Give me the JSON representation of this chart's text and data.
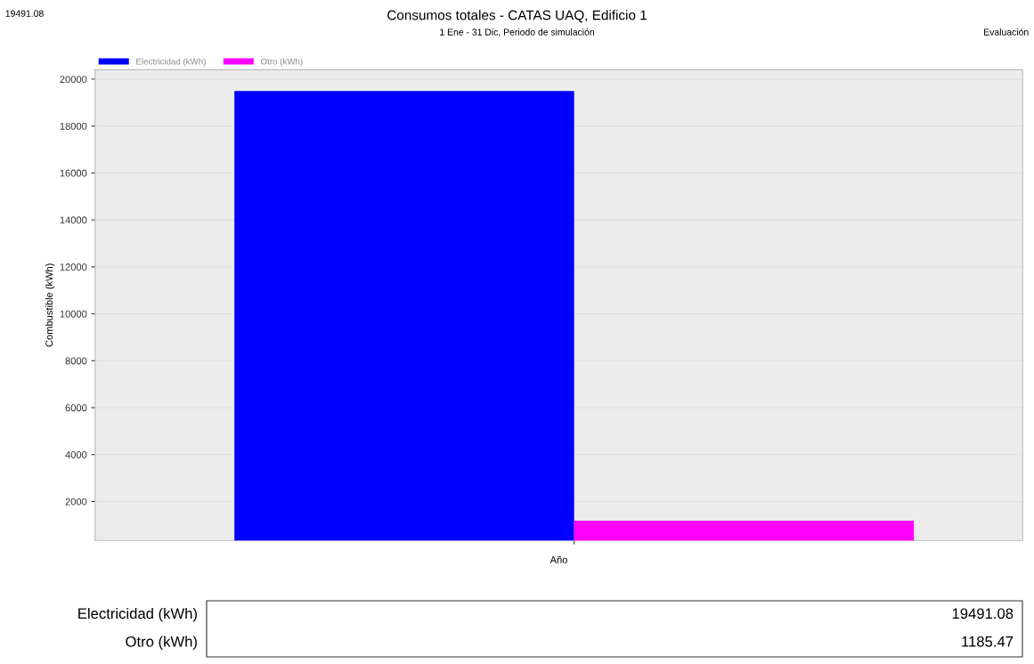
{
  "chart_data": {
    "type": "bar",
    "title": "Consumos totales - CATAS UAQ, Edificio 1",
    "subtitle": "1 Ene - 31 Dic, Periodo de simulación",
    "xlabel": "Año",
    "ylabel": "Combustible (kWh)",
    "annotations": [
      "19491.08",
      "Evaluación",
      "19491.08",
      "1185.47"
    ],
    "categories": [
      null
    ],
    "series": [
      {
        "name": "Electricidad (kWh)",
        "color": "#0000ff",
        "values": [
          19491.08
        ]
      },
      {
        "name": "Otro (kWh)",
        "color": "#ff00ff",
        "values": [
          1185.47
        ]
      }
    ],
    "ylim": [
      340,
      20400
    ],
    "yticks": [
      2000,
      4000,
      6000,
      8000,
      10000,
      12000,
      14000,
      16000,
      18000,
      20000
    ],
    "grid": "y",
    "legend": "top left"
  }
}
